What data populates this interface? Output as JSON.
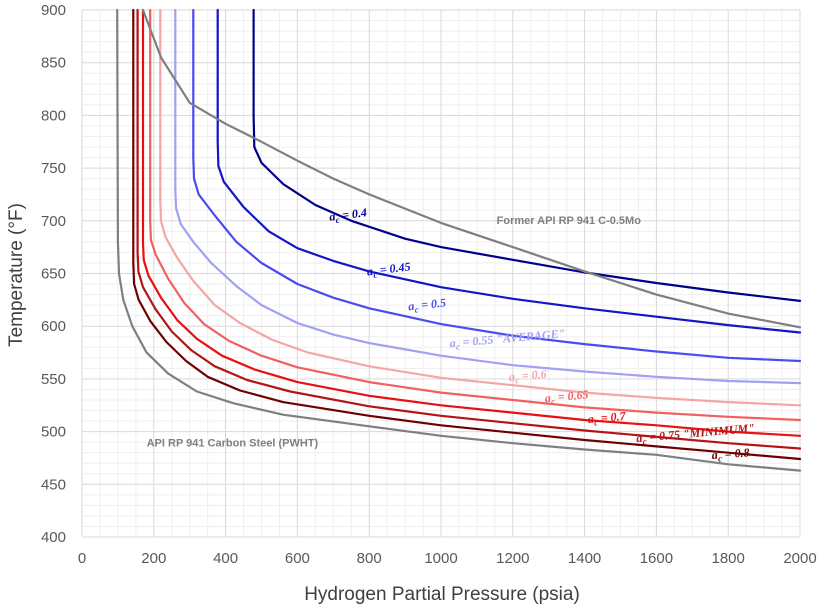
{
  "chart_data": {
    "type": "line",
    "title": "",
    "xlabel": "Hydrogen Partial Pressure (psia)",
    "ylabel": "Temperature (°F)",
    "xlim": [
      0,
      2000
    ],
    "ylim": [
      400,
      900
    ],
    "x_ticks": [
      "0",
      "200",
      "400",
      "600",
      "800",
      "1000",
      "1200",
      "1400",
      "1600",
      "1800",
      "2000"
    ],
    "y_ticks": [
      "400",
      "450",
      "500",
      "550",
      "600",
      "650",
      "700",
      "750",
      "800",
      "850",
      "900"
    ],
    "grid": true,
    "colors": {
      "grid_major": "#d9d9d9",
      "grid_minor": "#efefef",
      "reference_line": "#7f7f7f"
    },
    "series": [
      {
        "label_sub": "0.4",
        "label_suffix": "",
        "color": "#00008b",
        "points": [
          [
            478,
            900
          ],
          [
            478,
            800
          ],
          [
            480,
            770
          ],
          [
            500,
            755
          ],
          [
            560,
            735
          ],
          [
            650,
            715
          ],
          [
            750,
            700
          ],
          [
            900,
            683
          ],
          [
            1000,
            675
          ],
          [
            1200,
            663
          ],
          [
            1400,
            651
          ],
          [
            1600,
            641
          ],
          [
            1800,
            632
          ],
          [
            2000,
            624
          ]
        ]
      },
      {
        "label_sub": "0.45",
        "label_suffix": "",
        "color": "#1414c8",
        "points": [
          [
            378,
            900
          ],
          [
            378,
            775
          ],
          [
            380,
            752
          ],
          [
            395,
            737
          ],
          [
            450,
            713
          ],
          [
            520,
            690
          ],
          [
            600,
            674
          ],
          [
            700,
            662
          ],
          [
            800,
            652
          ],
          [
            1000,
            637
          ],
          [
            1200,
            626
          ],
          [
            1400,
            617
          ],
          [
            1600,
            609
          ],
          [
            1800,
            601
          ],
          [
            2000,
            594
          ]
        ]
      },
      {
        "label_sub": "0.5",
        "label_suffix": "",
        "color": "#4b4bf0",
        "points": [
          [
            310,
            900
          ],
          [
            310,
            760
          ],
          [
            312,
            740
          ],
          [
            325,
            725
          ],
          [
            370,
            705
          ],
          [
            430,
            680
          ],
          [
            500,
            660
          ],
          [
            600,
            640
          ],
          [
            700,
            627
          ],
          [
            800,
            617
          ],
          [
            1000,
            602
          ],
          [
            1200,
            591
          ],
          [
            1400,
            583
          ],
          [
            1600,
            576
          ],
          [
            1800,
            570
          ],
          [
            2000,
            567
          ]
        ]
      },
      {
        "label_sub": "0.55",
        "label_suffix": " \"AVERAGE\"",
        "color": "#a0a0f5",
        "points": [
          [
            260,
            900
          ],
          [
            260,
            730
          ],
          [
            262,
            712
          ],
          [
            275,
            697
          ],
          [
            310,
            680
          ],
          [
            360,
            660
          ],
          [
            430,
            638
          ],
          [
            500,
            620
          ],
          [
            600,
            603
          ],
          [
            700,
            592
          ],
          [
            800,
            584
          ],
          [
            1000,
            572
          ],
          [
            1200,
            563
          ],
          [
            1400,
            557
          ],
          [
            1600,
            552
          ],
          [
            1800,
            548
          ],
          [
            2000,
            546
          ]
        ]
      },
      {
        "label_sub": "0.6",
        "label_suffix": "",
        "color": "#f5a5a5",
        "points": [
          [
            218,
            900
          ],
          [
            218,
            720
          ],
          [
            220,
            700
          ],
          [
            232,
            685
          ],
          [
            265,
            665
          ],
          [
            310,
            643
          ],
          [
            370,
            620
          ],
          [
            440,
            603
          ],
          [
            530,
            587
          ],
          [
            630,
            575
          ],
          [
            800,
            562
          ],
          [
            1000,
            551
          ],
          [
            1200,
            544
          ],
          [
            1400,
            537
          ],
          [
            1600,
            532
          ],
          [
            1800,
            528
          ],
          [
            2000,
            525
          ]
        ]
      },
      {
        "label_sub": "0.65",
        "label_suffix": "",
        "color": "#f06060",
        "points": [
          [
            190,
            900
          ],
          [
            190,
            700
          ],
          [
            192,
            682
          ],
          [
            205,
            668
          ],
          [
            240,
            645
          ],
          [
            285,
            622
          ],
          [
            340,
            602
          ],
          [
            410,
            586
          ],
          [
            500,
            572
          ],
          [
            600,
            561
          ],
          [
            800,
            547
          ],
          [
            1000,
            537
          ],
          [
            1200,
            530
          ],
          [
            1400,
            523
          ],
          [
            1600,
            518
          ],
          [
            1800,
            514
          ],
          [
            2000,
            511
          ]
        ]
      },
      {
        "label_sub": "0.7",
        "label_suffix": "",
        "color": "#e81010",
        "points": [
          [
            170,
            900
          ],
          [
            170,
            680
          ],
          [
            172,
            663
          ],
          [
            185,
            648
          ],
          [
            220,
            627
          ],
          [
            265,
            606
          ],
          [
            320,
            588
          ],
          [
            390,
            572
          ],
          [
            480,
            559
          ],
          [
            600,
            547
          ],
          [
            800,
            534
          ],
          [
            1000,
            525
          ],
          [
            1200,
            518
          ],
          [
            1400,
            511
          ],
          [
            1600,
            506
          ],
          [
            1800,
            500
          ],
          [
            2000,
            496
          ]
        ]
      },
      {
        "label_sub": "0.75",
        "label_suffix": " \"MINIMUM\"",
        "color": "#b41414",
        "points": [
          [
            155,
            900
          ],
          [
            155,
            670
          ],
          [
            157,
            652
          ],
          [
            170,
            637
          ],
          [
            205,
            616
          ],
          [
            250,
            595
          ],
          [
            305,
            577
          ],
          [
            370,
            562
          ],
          [
            460,
            549
          ],
          [
            580,
            538
          ],
          [
            800,
            524
          ],
          [
            1000,
            515
          ],
          [
            1200,
            508
          ],
          [
            1400,
            501
          ],
          [
            1600,
            495
          ],
          [
            1800,
            489
          ],
          [
            2000,
            484
          ]
        ]
      },
      {
        "label_sub": "0.8",
        "label_suffix": "",
        "color": "#6e0000",
        "points": [
          [
            143,
            900
          ],
          [
            143,
            660
          ],
          [
            145,
            640
          ],
          [
            158,
            625
          ],
          [
            190,
            605
          ],
          [
            235,
            585
          ],
          [
            290,
            567
          ],
          [
            350,
            552
          ],
          [
            440,
            539
          ],
          [
            560,
            528
          ],
          [
            800,
            515
          ],
          [
            1000,
            506
          ],
          [
            1200,
            499
          ],
          [
            1400,
            492
          ],
          [
            1600,
            486
          ],
          [
            1800,
            480
          ],
          [
            2000,
            474
          ]
        ]
      },
      {
        "label_text": "API RP 941 Carbon Steel (PWHT)",
        "color": "#7f7f7f",
        "points": [
          [
            98,
            900
          ],
          [
            100,
            680
          ],
          [
            103,
            650
          ],
          [
            115,
            625
          ],
          [
            140,
            600
          ],
          [
            180,
            575
          ],
          [
            240,
            555
          ],
          [
            320,
            538
          ],
          [
            420,
            527
          ],
          [
            560,
            516
          ],
          [
            800,
            505
          ],
          [
            1000,
            496
          ],
          [
            1200,
            489
          ],
          [
            1400,
            483
          ],
          [
            1600,
            478
          ],
          [
            1800,
            469
          ],
          [
            2000,
            463
          ]
        ]
      },
      {
        "label_text": "Former API RP 941 C-0.5Mo",
        "color": "#7f7f7f",
        "points": [
          [
            170,
            900
          ],
          [
            220,
            855
          ],
          [
            300,
            812
          ],
          [
            400,
            792
          ],
          [
            500,
            775
          ],
          [
            600,
            757
          ],
          [
            700,
            740
          ],
          [
            800,
            725
          ],
          [
            1000,
            698
          ],
          [
            1200,
            675
          ],
          [
            1400,
            652
          ],
          [
            1600,
            630
          ],
          [
            1800,
            612
          ],
          [
            2000,
            599
          ]
        ]
      }
    ],
    "labels": [
      {
        "series": 0,
        "x": 690,
        "y": 700,
        "anchor": "start",
        "rotate": -7
      },
      {
        "series": 1,
        "x": 795,
        "y": 648,
        "anchor": "start",
        "rotate": -7
      },
      {
        "series": 2,
        "x": 910,
        "y": 615,
        "anchor": "start",
        "rotate": -6
      },
      {
        "series": 3,
        "x": 1025,
        "y": 580,
        "anchor": "start",
        "rotate": -5
      },
      {
        "series": 4,
        "x": 1190,
        "y": 548,
        "anchor": "start",
        "rotate": -5
      },
      {
        "series": 5,
        "x": 1290,
        "y": 528,
        "anchor": "start",
        "rotate": -5
      },
      {
        "series": 6,
        "x": 1410,
        "y": 508,
        "anchor": "start",
        "rotate": -5
      },
      {
        "series": 7,
        "x": 1545,
        "y": 490,
        "anchor": "start",
        "rotate": -5
      },
      {
        "series": 8,
        "x": 1755,
        "y": 474,
        "anchor": "start",
        "rotate": -4
      },
      {
        "series": 9,
        "x": 180,
        "y": 486,
        "anchor": "start",
        "rotate": 0
      },
      {
        "series": 10,
        "x": 1155,
        "y": 697,
        "anchor": "start",
        "rotate": 0
      }
    ]
  }
}
